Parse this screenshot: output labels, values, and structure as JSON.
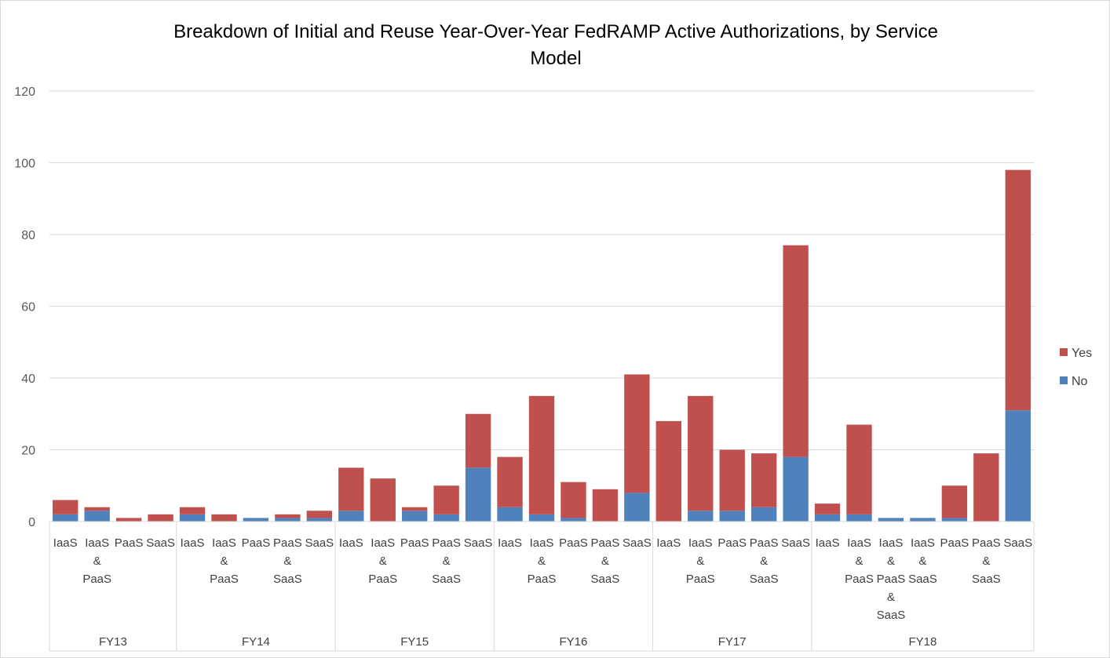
{
  "chart_data": {
    "type": "bar",
    "stacked": true,
    "title": "Breakdown of Initial and Reuse Year-Over-Year FedRAMP Active Authorizations, by Service Model",
    "ylim": [
      0,
      120
    ],
    "yticks": [
      0,
      20,
      40,
      60,
      80,
      100,
      120
    ],
    "grid": true,
    "legend_position": "right",
    "colors": {
      "Yes": "#c0504d",
      "No": "#4f81bd"
    },
    "groups": [
      {
        "name": "FY13",
        "categories": [
          "IaaS",
          "IaaS & PaaS",
          "PaaS",
          "SaaS"
        ],
        "no": [
          2,
          3,
          0,
          0
        ],
        "yes": [
          4,
          1,
          1,
          2
        ]
      },
      {
        "name": "FY14",
        "categories": [
          "IaaS",
          "IaaS & PaaS",
          "PaaS",
          "PaaS & SaaS",
          "SaaS"
        ],
        "no": [
          2,
          0,
          1,
          1,
          1
        ],
        "yes": [
          2,
          2,
          0,
          1,
          2
        ]
      },
      {
        "name": "FY15",
        "categories": [
          "IaaS",
          "IaaS & PaaS",
          "PaaS",
          "PaaS & SaaS",
          "SaaS"
        ],
        "no": [
          3,
          0,
          3,
          2,
          15
        ],
        "yes": [
          12,
          12,
          1,
          8,
          15
        ]
      },
      {
        "name": "FY16",
        "categories": [
          "IaaS",
          "IaaS & PaaS",
          "PaaS",
          "PaaS & SaaS",
          "SaaS"
        ],
        "no": [
          4,
          2,
          1,
          0,
          8
        ],
        "yes": [
          14,
          33,
          10,
          9,
          33
        ]
      },
      {
        "name": "FY17",
        "categories": [
          "IaaS",
          "IaaS & PaaS",
          "PaaS",
          "PaaS & SaaS",
          "SaaS"
        ],
        "no": [
          0,
          3,
          3,
          4,
          18
        ],
        "yes": [
          28,
          32,
          17,
          15,
          59
        ]
      },
      {
        "name": "FY18",
        "categories": [
          "IaaS",
          "IaaS & PaaS",
          "IaaS & PaaS & SaaS",
          "IaaS & SaaS",
          "PaaS",
          "PaaS & SaaS",
          "SaaS"
        ],
        "no": [
          2,
          2,
          1,
          1,
          1,
          0,
          31
        ],
        "yes": [
          3,
          25,
          0,
          0,
          9,
          19,
          67
        ]
      }
    ],
    "series": [
      {
        "name": "Yes"
      },
      {
        "name": "No"
      }
    ]
  }
}
